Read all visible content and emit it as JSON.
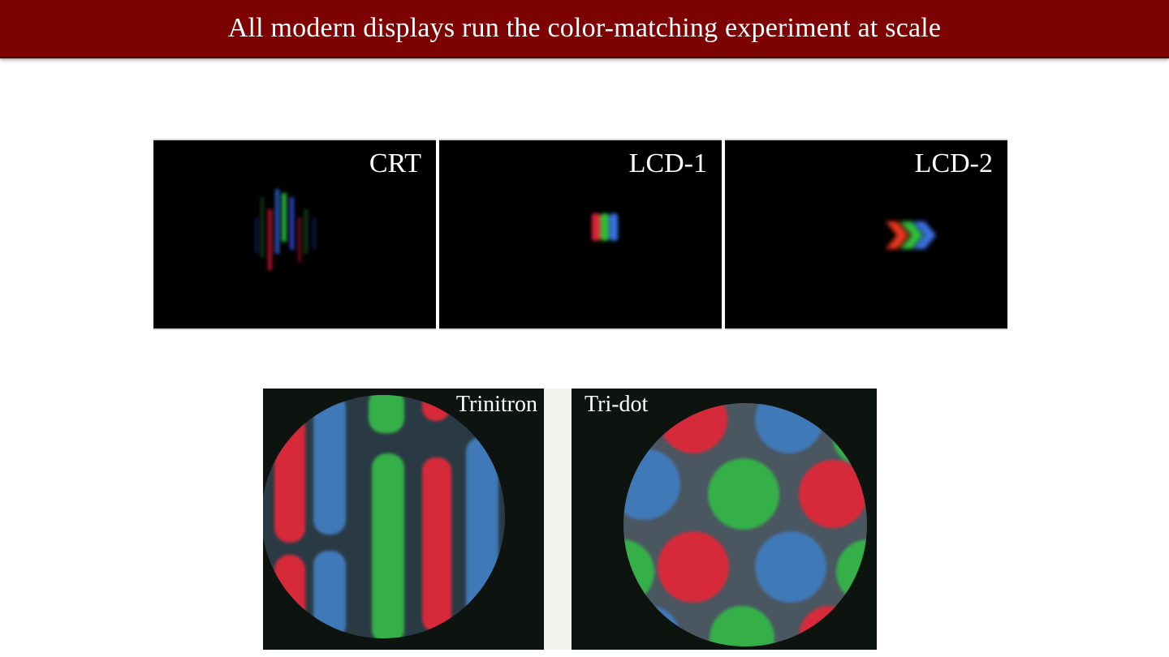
{
  "slide": {
    "title": "All modern displays run the color-matching experiment at scale"
  },
  "panels": [
    {
      "label": "CRT"
    },
    {
      "label": "LCD-1"
    },
    {
      "label": "LCD-2"
    }
  ],
  "photos": [
    {
      "label": "Trinitron"
    },
    {
      "label": "Tri-dot"
    }
  ],
  "colors": {
    "title_bar": "#7d0202",
    "phosphor_red": "#e0203a",
    "phosphor_green": "#2fbf3a",
    "phosphor_blue": "#3a6fe0"
  }
}
